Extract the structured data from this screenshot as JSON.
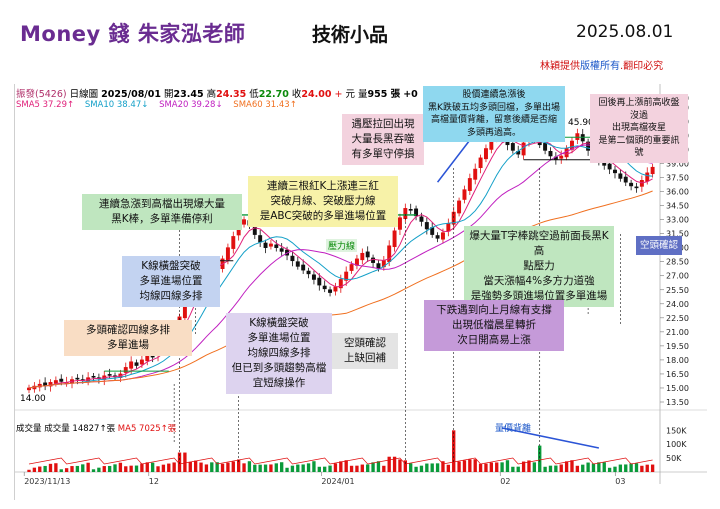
{
  "header": {
    "brand": "Money 錢  朱家泓老師",
    "topic": "技術小品",
    "date": "2025.08.01",
    "copyright_main": "林穎提供",
    "copyright_mid": "版權所有",
    "copyright_end": ".翻印必究"
  },
  "info_bar": {
    "symbol": "振發(5426)",
    "period": "日線圖",
    "bar_date": "2025/08/01",
    "open_label": "開",
    "open": "23.45",
    "high_label": "高",
    "high": "24.35",
    "low_label": "低",
    "low": "22.70",
    "close_label": "收",
    "close": "24.00",
    "change": "+",
    "currency": "元",
    "volume_label": "量",
    "volume": "955 張",
    "volume_change": "+0"
  },
  "ma_legend": [
    {
      "text": "SMA5 37.29↑",
      "color": "#e0207a"
    },
    {
      "text": "SMA10 38.47↓",
      "color": "#14a0c8"
    },
    {
      "text": "SMA20 39.28↓",
      "color": "#c020c0"
    },
    {
      "text": "SMA60 31.43↑",
      "color": "#f07020"
    }
  ],
  "volume_legend": {
    "label": "成交量",
    "vol": "成交量 14827↑張",
    "ma": "MA5 7025↑張"
  },
  "labels": {
    "pressure_line": "壓力線",
    "volume_decrease": "量價背離",
    "peak_price": "45.90",
    "low_price": "14.00"
  },
  "annotations": {
    "a1": [
      "多頭確認四線多排",
      "多單進場"
    ],
    "a2": [
      "K線橫盤突破",
      "多單進場位置",
      "均線四線多排"
    ],
    "a3": [
      "連續急漲到高檔出現爆大量",
      "黑K棒，多單準備停利"
    ],
    "a4": [
      "K線橫盤突破",
      "多單進場位置",
      "均線四線多排",
      "但已到多頭趨勢高檔",
      "宜短線操作"
    ],
    "a5": [
      "連續三根紅K上漲連三紅",
      "突破月線、突破壓力線",
      "是ABC突破的多單進場位置"
    ],
    "a6": [
      "遇壓拉回出現",
      "大量長黑吞噬",
      "有多單守停損"
    ],
    "a7": [
      "空頭確認",
      "上缺回補"
    ],
    "a8": [
      "股價連續急漲後",
      "黑K跌破五均多頭回檔，多單出場",
      "高檔量價背離，留意後續是否縮",
      "多頭再過高。"
    ],
    "a9": [
      "爆大量T字棒跳空過前面長黑K高",
      "點壓力",
      "當天漲幅4%多方力道強",
      "是強勢多頭進場位置多單進場"
    ],
    "a10": [
      "下跌遇到向上月線有支撐",
      "出現低檔晨星轉折",
      "次日開高易上漲"
    ],
    "a11": [
      "回後再上漲前高收盤沒過",
      "出現高檔夜星",
      "是第二個頭的重要訊號"
    ],
    "a12": [
      "空頭確認"
    ]
  },
  "chart_data": {
    "type": "candlestick",
    "title": "振發(5426) 日線圖",
    "y_price_ticks": [
      "46.00",
      "45.00",
      "43.50",
      "42.00",
      "40.50",
      "39.00",
      "37.50",
      "36.00",
      "34.50",
      "33.00",
      "31.50",
      "30.00",
      "28.50",
      "27.00",
      "25.50",
      "24.00",
      "22.50",
      "21.00",
      "19.50",
      "18.00",
      "16.50",
      "15.00",
      "13.50"
    ],
    "y_volume_ticks": [
      "150K",
      "100K",
      "50K"
    ],
    "x_ticks": [
      "2023/11/13",
      "12",
      "2024/01",
      "02",
      "03"
    ],
    "ylim": [
      13.5,
      46.0
    ],
    "annotated_prices": {
      "high": 45.9,
      "low": 14.0
    },
    "current": {
      "date": "2025/08/01",
      "open": 23.45,
      "high": 24.35,
      "low": 22.7,
      "close": 24.0,
      "volume": 955
    },
    "ma_current": {
      "SMA5": 37.29,
      "SMA10": 38.47,
      "SMA20": 39.28,
      "SMA60": 31.43
    },
    "volume_current": {
      "vol": 14827,
      "ma5": 7025
    },
    "pressure_line": 33.5,
    "price_path": [
      15.0,
      15.2,
      15.4,
      15.3,
      15.6,
      15.8,
      15.7,
      15.6,
      15.9,
      16.0,
      15.8,
      16.1,
      16.2,
      16.0,
      16.3,
      16.4,
      16.2,
      16.5,
      17.2,
      17.8,
      17.4,
      18.0,
      18.6,
      18.3,
      19.0,
      19.8,
      20.6,
      21.4,
      22.6,
      24.0,
      25.6,
      27.2,
      28.2,
      28.6,
      28.0,
      27.6,
      28.8,
      30.0,
      31.2,
      32.6,
      33.0,
      32.4,
      31.4,
      30.6,
      30.0,
      30.4,
      30.0,
      29.6,
      29.2,
      28.6,
      28.0,
      27.6,
      27.2,
      26.6,
      26.0,
      25.6,
      25.2,
      25.8,
      26.6,
      27.4,
      28.2,
      28.8,
      29.4,
      29.0,
      28.4,
      27.8,
      28.6,
      30.2,
      31.8,
      33.2,
      34.2,
      34.0,
      33.4,
      32.8,
      32.0,
      31.4,
      31.0,
      31.6,
      32.6,
      33.8,
      35.0,
      36.2,
      37.4,
      38.4,
      39.6,
      40.6,
      41.6,
      42.4,
      41.8,
      41.0,
      40.4,
      40.0,
      41.2,
      42.4,
      41.8,
      41.0,
      40.4,
      39.8,
      39.4,
      39.8,
      40.6,
      41.4,
      42.2,
      41.4,
      40.4,
      39.8,
      39.2,
      38.8,
      38.4,
      38.0,
      37.4,
      37.0,
      36.6,
      36.4,
      37.2,
      38.0,
      38.6
    ]
  }
}
